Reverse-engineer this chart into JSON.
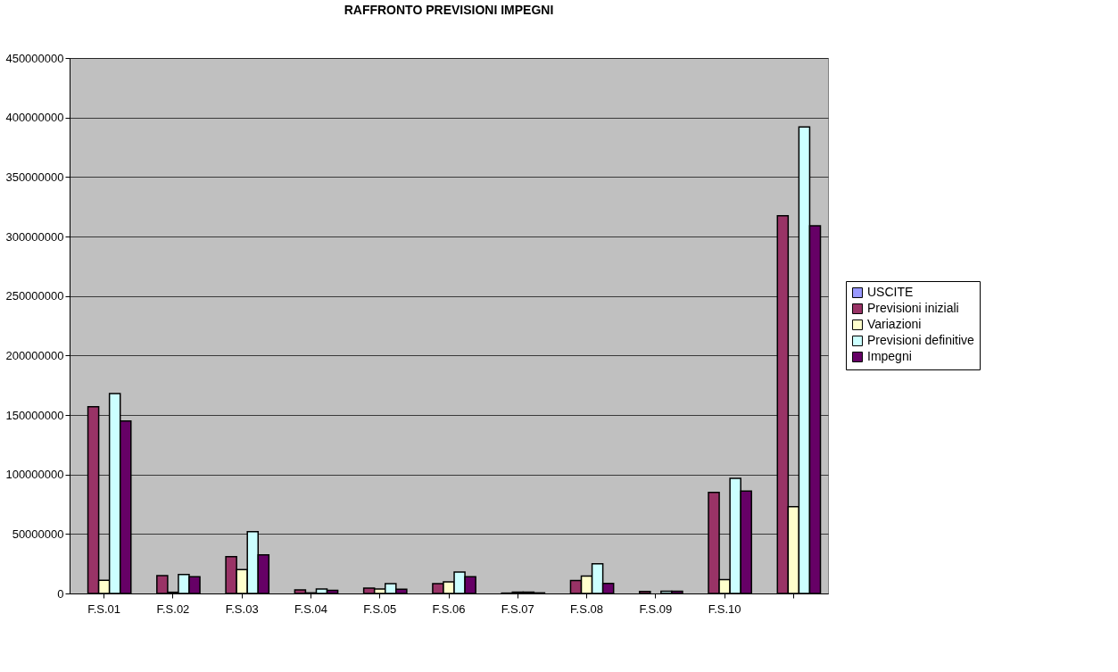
{
  "chart_data": {
    "type": "bar",
    "title": "RAFFRONTO PREVISIONI IMPEGNI",
    "categories": [
      "F.S.01",
      "F.S.02",
      "F.S.03",
      "F.S.04",
      "F.S.05",
      "F.S.06",
      "F.S.07",
      "F.S.08",
      "F.S.09",
      "F.S.10",
      null
    ],
    "series": [
      {
        "name": "USCITE",
        "color": "#9999ff",
        "values": [
          null,
          null,
          null,
          null,
          null,
          null,
          null,
          null,
          null,
          null,
          null
        ]
      },
      {
        "name": "Previsioni iniziali",
        "color": "#993366",
        "values": [
          157000000,
          15000000,
          31000000,
          3000000,
          4500000,
          8300000,
          300000,
          10900000,
          1600000,
          85000000,
          317500000
        ]
      },
      {
        "name": "Variazioni",
        "color": "#ffffcc",
        "values": [
          11000000,
          1000000,
          20000000,
          500000,
          3800000,
          9700000,
          1200000,
          14600000,
          null,
          11600000,
          73000000
        ]
      },
      {
        "name": "Previsioni definitive",
        "color": "#ccffff",
        "values": [
          168000000,
          16000000,
          52000000,
          3800000,
          8300000,
          18000000,
          1200000,
          25000000,
          1900000,
          96700000,
          392000000
        ]
      },
      {
        "name": "Impegni",
        "color": "#660066",
        "values": [
          145000000,
          14000000,
          32500000,
          2600000,
          3500000,
          14000000,
          500000,
          8500000,
          1900000,
          86000000,
          309000000
        ]
      }
    ],
    "ylim": [
      0,
      450000000
    ],
    "yticks": [
      0,
      50000000,
      100000000,
      150000000,
      200000000,
      250000000,
      300000000,
      350000000,
      400000000,
      450000000
    ],
    "grid": "y",
    "legend": "right"
  }
}
